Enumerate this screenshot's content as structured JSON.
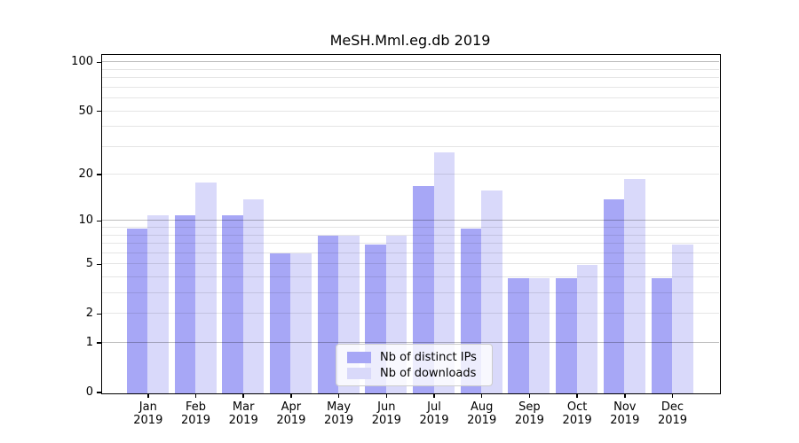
{
  "title": "MeSH.Mml.eg.db 2019",
  "chart_data": {
    "type": "bar",
    "title": "MeSH.Mml.eg.db 2019",
    "categories": [
      "Jan",
      "Feb",
      "Mar",
      "Apr",
      "May",
      "Jun",
      "Jul",
      "Aug",
      "Sep",
      "Oct",
      "Nov",
      "Dec"
    ],
    "year_label": "2019",
    "series": [
      {
        "name": "Nb of distinct IPs",
        "color": "#a7a7f6",
        "values": [
          9,
          11,
          11,
          6,
          8,
          7,
          17,
          9,
          4,
          4,
          14,
          4
        ]
      },
      {
        "name": "Nb of downloads",
        "color": "#d9d9fa",
        "values": [
          11,
          18,
          14,
          6,
          8,
          8,
          28,
          16,
          4,
          5,
          19,
          7
        ]
      }
    ],
    "xlabel": "",
    "ylabel": "",
    "yscale": "log1p",
    "ylim": [
      0,
      111
    ],
    "ytick_values": [
      100,
      50,
      20,
      10,
      5,
      2,
      1,
      0
    ],
    "grid_major_values": [
      1,
      10,
      100
    ],
    "grid_minor_values": [
      2,
      3,
      4,
      5,
      6,
      7,
      8,
      9,
      20,
      30,
      40,
      50,
      60,
      70,
      80,
      90
    ],
    "legend_position": "lower center",
    "background_color": "#ffffff",
    "axis_color": "#000000"
  }
}
